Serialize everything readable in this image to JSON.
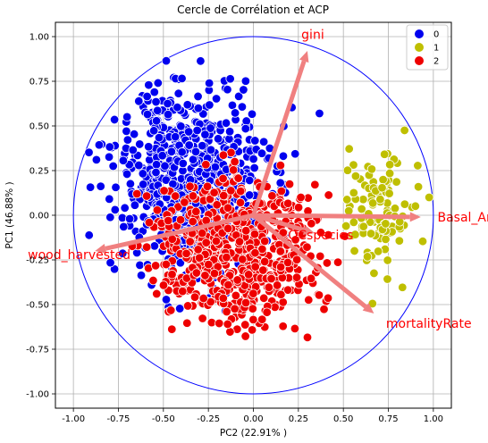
{
  "chart_data": {
    "type": "scatter",
    "title": "Cercle de Corrélation et ACP",
    "xlabel": "PC2 (22.91% )",
    "ylabel": "PC1 (46.88% )",
    "xlim": [
      -1.1,
      1.1
    ],
    "ylim": [
      -1.08,
      1.08
    ],
    "xticks": [
      "-1.00",
      "-0.75",
      "-0.50",
      "-0.25",
      "0.00",
      "0.25",
      "0.50",
      "0.75",
      "1.00"
    ],
    "yticks": [
      "1.00",
      "0.75",
      "0.50",
      "0.25",
      "0.00",
      "-0.25",
      "-0.50",
      "-0.75",
      "-1.00"
    ],
    "grid": true,
    "legend_position": "top-right",
    "unit_circle": true,
    "legend": [
      {
        "name": "0",
        "color": "#0000ee"
      },
      {
        "name": "1",
        "color": "#bfbf00"
      },
      {
        "name": "2",
        "color": "#ee0000"
      }
    ],
    "clusters": [
      {
        "name": "0",
        "color": "#0000ee",
        "count": 700,
        "cx": -0.33,
        "cy": 0.2,
        "sx": 0.22,
        "sy": 0.26
      },
      {
        "name": "2",
        "color": "#ee0000",
        "count": 650,
        "cx": -0.08,
        "cy": -0.2,
        "sx": 0.22,
        "sy": 0.2
      },
      {
        "name": "1",
        "color": "#bfbf00",
        "count": 110,
        "cx": 0.72,
        "cy": 0.05,
        "sx": 0.1,
        "sy": 0.2
      }
    ],
    "vectors": [
      {
        "name": "gini",
        "x": 0.3,
        "y": 0.92
      },
      {
        "name": "Basal_Area",
        "x": 0.93,
        "y": -0.01
      },
      {
        "name": "OCspecies",
        "x": 0.34,
        "y": -0.1
      },
      {
        "name": "mortalityRate",
        "x": 0.67,
        "y": -0.55
      },
      {
        "name": "wood_harvested",
        "x": -0.88,
        "y": -0.2
      }
    ],
    "arrow_color": "#f08080",
    "label_color": "#ff0000",
    "circle_color": "#0000ff"
  }
}
